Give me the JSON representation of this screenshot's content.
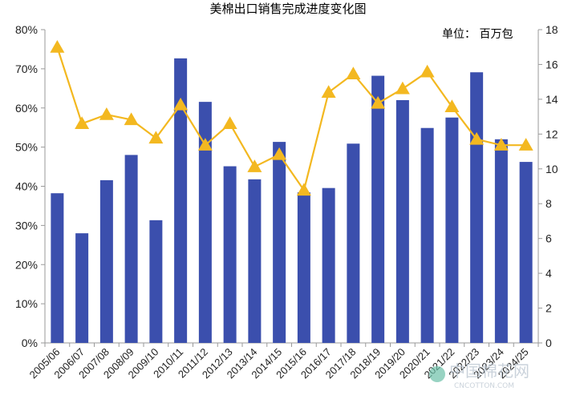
{
  "chart_data": {
    "type": "bar",
    "title": "美棉出口销售完成进度变化图",
    "unit_label": "单位：   百万包",
    "categories": [
      "2005/06",
      "2006/07",
      "2007/08",
      "2008/09",
      "2009/10",
      "2010/11",
      "2011/12",
      "2012/13",
      "2013/14",
      "2014/15",
      "2015/16",
      "2016/17",
      "2017/18",
      "2018/19",
      "2019/20",
      "2020/21",
      "2021/22",
      "2022/23",
      "2023/24",
      "2024/25"
    ],
    "series": [
      {
        "axis": "right",
        "render": "bar",
        "values": [
          8.6,
          6.3,
          9.35,
          10.8,
          7.05,
          16.35,
          13.85,
          10.15,
          9.4,
          11.55,
          8.65,
          8.9,
          11.45,
          15.35,
          13.95,
          12.35,
          12.95,
          15.55,
          11.7,
          10.4
        ]
      },
      {
        "axis": "left",
        "render": "line",
        "values": [
          0.755,
          0.56,
          0.583,
          0.57,
          0.523,
          0.608,
          0.505,
          0.56,
          0.45,
          0.481,
          0.39,
          0.64,
          0.687,
          0.612,
          0.649,
          0.692,
          0.603,
          0.52,
          0.505,
          0.505
        ]
      }
    ],
    "y_left": {
      "min": 0,
      "max": 0.8,
      "ticks": [
        "0%",
        "10%",
        "20%",
        "30%",
        "40%",
        "50%",
        "60%",
        "70%",
        "80%"
      ]
    },
    "y_right": {
      "min": 0,
      "max": 18,
      "ticks": [
        "0",
        "2",
        "4",
        "6",
        "8",
        "10",
        "12",
        "14",
        "16",
        "18"
      ]
    },
    "grid": false,
    "legend": "none",
    "colors": {
      "bar": "#3b4fad",
      "line": "#f3b820",
      "axis": "#9a9a9a"
    }
  },
  "watermark": {
    "text": "中国棉花网",
    "sub": "CNCOTTON.COM"
  }
}
